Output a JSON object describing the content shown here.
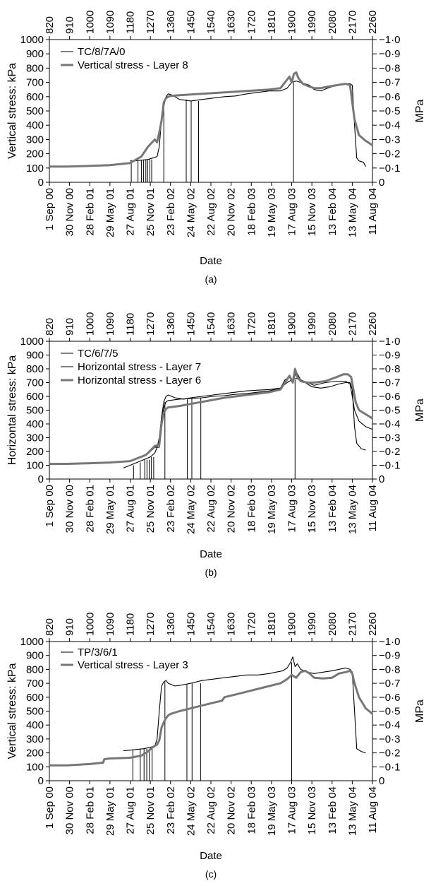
{
  "chart_data": [
    {
      "type": "line",
      "panel_label": "(a)",
      "ylabel": "Vertical stress: kPa",
      "ylabel_right": "MPa",
      "xlabel": "Date",
      "ylim": [
        0,
        1000
      ],
      "yticks": [
        0,
        100,
        200,
        300,
        400,
        500,
        600,
        700,
        800,
        900,
        1000
      ],
      "yticks_right": [
        "0",
        "0·1",
        "0·2",
        "0·3",
        "0·4",
        "0·5",
        "0·6",
        "0·7",
        "0·8",
        "0·9",
        "1·0"
      ],
      "xlim": [
        820,
        2260
      ],
      "xticks_top": [
        820,
        910,
        1000,
        1090,
        1180,
        1270,
        1360,
        1450,
        1540,
        1630,
        1720,
        1810,
        1900,
        1990,
        2080,
        2170,
        2260
      ],
      "xticks_bottom": [
        "1 Sep 00",
        "30 Nov 00",
        "28 Feb 01",
        "29 May 01",
        "27 Aug 01",
        "25 Nov 01",
        "23 Feb 02",
        "24 May 02",
        "22 Aug 02",
        "20 Nov 02",
        "18 Feb 03",
        "19 May 03",
        "17 Aug 03",
        "15 Nov 03",
        "13 Feb 04",
        "13 May 04",
        "11 Aug 04"
      ],
      "legend_position": "top-left",
      "series": [
        {
          "name": "TC/8/7A/0",
          "color": "#000000",
          "x": [
            1180,
            1200,
            1230,
            1260,
            1280,
            1300,
            1310,
            1320,
            1330,
            1340,
            1350,
            1370,
            1400,
            1450,
            1500,
            1550,
            1600,
            1650,
            1700,
            1750,
            1800,
            1850,
            1880,
            1900,
            1920,
            1940,
            1960,
            1980,
            2000,
            2030,
            2060,
            2100,
            2140,
            2160,
            2170,
            2180,
            2190,
            2200,
            2220,
            2230
          ],
          "y": [
            150,
            150,
            155,
            160,
            170,
            180,
            250,
            440,
            530,
            600,
            620,
            610,
            580,
            570,
            580,
            590,
            600,
            605,
            620,
            630,
            640,
            640,
            660,
            700,
            710,
            700,
            690,
            680,
            650,
            640,
            660,
            680,
            690,
            690,
            680,
            400,
            170,
            150,
            140,
            110
          ],
          "spikes": [
            {
              "x": 1185,
              "y": 0
            },
            {
              "x": 1215,
              "y": 0
            },
            {
              "x": 1230,
              "y": 0
            },
            {
              "x": 1240,
              "y": 0
            },
            {
              "x": 1250,
              "y": 0
            },
            {
              "x": 1258,
              "y": 0
            },
            {
              "x": 1268,
              "y": 0
            },
            {
              "x": 1276,
              "y": 0
            },
            {
              "x": 1330,
              "y": 0
            },
            {
              "x": 1430,
              "y": 0
            },
            {
              "x": 1452,
              "y": 0
            },
            {
              "x": 1485,
              "y": 0
            },
            {
              "x": 1908,
              "y": 0
            }
          ]
        },
        {
          "name": "Vertical stress - Layer 8",
          "color": "#777777",
          "x": [
            820,
            900,
            1000,
            1090,
            1180,
            1230,
            1260,
            1290,
            1300,
            1310,
            1320,
            1330,
            1340,
            1350,
            1360,
            1400,
            1450,
            1500,
            1550,
            1600,
            1650,
            1700,
            1750,
            1800,
            1850,
            1870,
            1890,
            1900,
            1910,
            1920,
            1930,
            1950,
            1980,
            2000,
            2030,
            2060,
            2100,
            2140,
            2160,
            2170,
            2180,
            2200,
            2230,
            2260
          ],
          "y": [
            110,
            110,
            115,
            120,
            135,
            180,
            250,
            300,
            280,
            350,
            430,
            560,
            590,
            600,
            605,
            610,
            615,
            620,
            625,
            630,
            635,
            640,
            645,
            650,
            660,
            700,
            740,
            700,
            760,
            770,
            730,
            690,
            670,
            660,
            660,
            670,
            680,
            690,
            680,
            560,
            440,
            330,
            290,
            260
          ]
        }
      ]
    },
    {
      "type": "line",
      "panel_label": "(b)",
      "ylabel": "Horizontal stress: kPa",
      "ylabel_right": "MPa",
      "xlabel": "Date",
      "ylim": [
        0,
        1000
      ],
      "yticks": [
        0,
        100,
        200,
        300,
        400,
        500,
        600,
        700,
        800,
        900,
        1000
      ],
      "yticks_right": [
        "0",
        "0·1",
        "0·2",
        "0·3",
        "0·4",
        "0·5",
        "0·6",
        "0·7",
        "0·8",
        "0·9",
        "1·0"
      ],
      "xlim": [
        820,
        2260
      ],
      "xticks_top": [
        820,
        910,
        1000,
        1090,
        1180,
        1270,
        1360,
        1450,
        1540,
        1630,
        1720,
        1810,
        1900,
        1990,
        2080,
        2170,
        2260
      ],
      "xticks_bottom": [
        "1 Sep 00",
        "30 Nov 00",
        "28 Feb 01",
        "29 May 01",
        "27 Aug 01",
        "25 Nov 01",
        "23 Feb 02",
        "24 May 02",
        "22 Aug 02",
        "20 Nov 02",
        "18 Feb 03",
        "19 May 03",
        "17 Aug 03",
        "15 Nov 03",
        "13 Feb 04",
        "13 May 04",
        "11 Aug 04"
      ],
      "legend_position": "top-left",
      "series": [
        {
          "name": "TC/6/7/5",
          "color": "#000000",
          "x": [
            1150,
            1180,
            1210,
            1240,
            1270,
            1290,
            1300,
            1310,
            1320,
            1330,
            1340,
            1350,
            1380,
            1420,
            1450,
            1500,
            1550,
            1600,
            1650,
            1700,
            1750,
            1800,
            1850,
            1880,
            1900,
            1920,
            1940,
            1960,
            1990,
            2030,
            2070,
            2110,
            2140,
            2160,
            2170,
            2180,
            2190,
            2210,
            2230
          ],
          "y": [
            80,
            100,
            120,
            140,
            160,
            190,
            230,
            300,
            450,
            560,
            600,
            610,
            590,
            580,
            590,
            600,
            610,
            620,
            630,
            640,
            645,
            650,
            660,
            700,
            720,
            730,
            720,
            700,
            670,
            660,
            670,
            690,
            700,
            700,
            650,
            380,
            260,
            220,
            210
          ],
          "spikes": [
            {
              "x": 1195,
              "y": 0
            },
            {
              "x": 1225,
              "y": 0
            },
            {
              "x": 1245,
              "y": 0
            },
            {
              "x": 1255,
              "y": 0
            },
            {
              "x": 1265,
              "y": 0
            },
            {
              "x": 1275,
              "y": 0
            },
            {
              "x": 1285,
              "y": 0
            },
            {
              "x": 1335,
              "y": 0
            },
            {
              "x": 1435,
              "y": 0
            },
            {
              "x": 1455,
              "y": 0
            },
            {
              "x": 1495,
              "y": 0
            },
            {
              "x": 1915,
              "y": 0
            }
          ]
        },
        {
          "name": "Horizontal stress - Layer 7",
          "color": "#000000",
          "x": [
            820,
            900,
            1000,
            1090,
            1180,
            1250,
            1290,
            1310,
            1320,
            1330,
            1340,
            1350,
            1400,
            1450,
            1500,
            1550,
            1600,
            1650,
            1700,
            1750,
            1800,
            1850,
            1870,
            1890,
            1905,
            1920,
            1940,
            1970,
            2000,
            2050,
            2100,
            2140,
            2160,
            2170,
            2180,
            2200,
            2230,
            2260
          ],
          "y": [
            110,
            110,
            115,
            120,
            130,
            170,
            230,
            230,
            420,
            520,
            560,
            570,
            580,
            585,
            590,
            600,
            605,
            615,
            620,
            630,
            640,
            660,
            720,
            740,
            700,
            780,
            720,
            700,
            680,
            700,
            710,
            710,
            690,
            600,
            500,
            420,
            380,
            360
          ]
        },
        {
          "name": "Horizontal stress - Layer 6",
          "color": "#777777",
          "x": [
            820,
            900,
            1000,
            1090,
            1180,
            1250,
            1290,
            1310,
            1320,
            1330,
            1340,
            1350,
            1400,
            1450,
            1500,
            1550,
            1600,
            1650,
            1700,
            1750,
            1800,
            1850,
            1870,
            1890,
            1905,
            1915,
            1925,
            1940,
            1970,
            2000,
            2050,
            2100,
            2130,
            2150,
            2165,
            2175,
            2185,
            2200,
            2230,
            2260
          ],
          "y": [
            110,
            110,
            115,
            120,
            130,
            175,
            240,
            250,
            400,
            480,
            510,
            520,
            530,
            545,
            560,
            575,
            590,
            600,
            610,
            620,
            630,
            650,
            700,
            750,
            700,
            800,
            740,
            710,
            700,
            700,
            710,
            740,
            760,
            760,
            740,
            650,
            560,
            500,
            470,
            440
          ]
        }
      ]
    },
    {
      "type": "line",
      "panel_label": "(c)",
      "ylabel": "Vertical stress: kPa",
      "ylabel_right": "MPa",
      "xlabel": "Date",
      "ylim": [
        0,
        1000
      ],
      "yticks": [
        0,
        100,
        200,
        300,
        400,
        500,
        600,
        700,
        800,
        900,
        1000
      ],
      "yticks_right": [
        "0",
        "0·1",
        "0·2",
        "0·3",
        "0·4",
        "0·5",
        "0·6",
        "0·7",
        "0·8",
        "0·9",
        "1·0"
      ],
      "xlim": [
        820,
        2260
      ],
      "xticks_top": [
        820,
        910,
        1000,
        1090,
        1180,
        1270,
        1360,
        1450,
        1540,
        1630,
        1720,
        1810,
        1900,
        1990,
        2080,
        2170,
        2260
      ],
      "xticks_bottom": [
        "1 Sep 00",
        "30 Nov 00",
        "28 Feb 01",
        "29 May 01",
        "27 Aug 01",
        "25 Nov 01",
        "23 Feb 02",
        "24 May 02",
        "22 Aug 02",
        "20 Nov 02",
        "18 Feb 03",
        "19 May 03",
        "17 Aug 03",
        "15 Nov 03",
        "13 Feb 04",
        "13 May 04",
        "11 Aug 04"
      ],
      "legend_position": "top-left",
      "series": [
        {
          "name": "TP/3/6/1",
          "color": "#000000",
          "x": [
            1150,
            1180,
            1210,
            1240,
            1270,
            1290,
            1300,
            1310,
            1320,
            1330,
            1340,
            1350,
            1380,
            1420,
            1450,
            1500,
            1550,
            1600,
            1650,
            1700,
            1750,
            1800,
            1830,
            1860,
            1880,
            1895,
            1905,
            1915,
            1925,
            1940,
            1970,
            2000,
            2040,
            2080,
            2110,
            2140,
            2160,
            2170,
            2180,
            2190,
            2210,
            2230
          ],
          "y": [
            215,
            220,
            225,
            230,
            240,
            250,
            300,
            500,
            680,
            710,
            720,
            700,
            680,
            690,
            700,
            720,
            730,
            740,
            750,
            760,
            760,
            770,
            780,
            790,
            810,
            850,
            890,
            820,
            840,
            800,
            780,
            770,
            780,
            790,
            800,
            810,
            800,
            780,
            500,
            230,
            210,
            200
          ],
          "spikes": [
            {
              "x": 1192,
              "y": 0
            },
            {
              "x": 1225,
              "y": 0
            },
            {
              "x": 1242,
              "y": 0
            },
            {
              "x": 1254,
              "y": 0
            },
            {
              "x": 1266,
              "y": 0
            },
            {
              "x": 1278,
              "y": 0
            },
            {
              "x": 1335,
              "y": 0
            },
            {
              "x": 1433,
              "y": 0
            },
            {
              "x": 1456,
              "y": 0
            },
            {
              "x": 1494,
              "y": 0
            },
            {
              "x": 1900,
              "y": 0
            }
          ]
        },
        {
          "name": "Vertical stress - Layer 3",
          "color": "#777777",
          "x": [
            820,
            900,
            1000,
            1060,
            1065,
            1090,
            1180,
            1230,
            1260,
            1280,
            1300,
            1310,
            1320,
            1330,
            1340,
            1350,
            1360,
            1400,
            1450,
            1500,
            1550,
            1590,
            1600,
            1650,
            1700,
            1750,
            1800,
            1850,
            1880,
            1900,
            1920,
            1940,
            1960,
            1980,
            2000,
            2040,
            2080,
            2110,
            2140,
            2160,
            2170,
            2180,
            2200,
            2230,
            2260
          ],
          "y": [
            110,
            110,
            120,
            130,
            155,
            160,
            165,
            180,
            210,
            240,
            260,
            290,
            380,
            420,
            450,
            470,
            480,
            500,
            520,
            540,
            560,
            575,
            600,
            620,
            640,
            660,
            680,
            700,
            730,
            760,
            740,
            780,
            790,
            770,
            740,
            735,
            740,
            770,
            780,
            790,
            770,
            700,
            600,
            520,
            480
          ]
        }
      ]
    }
  ]
}
